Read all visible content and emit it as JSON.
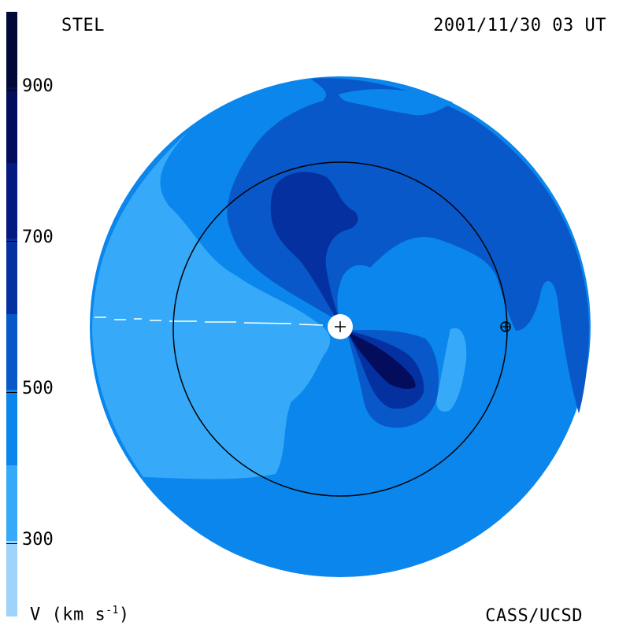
{
  "header": {
    "observatory": "STEL",
    "timestamp": "2001/11/30 03 UT"
  },
  "footer": {
    "credit": "CASS/UCSD",
    "units_text": "V (km s",
    "units_exp": "-1",
    "units_close": ")"
  },
  "colorbar": {
    "quantity": "V",
    "units": "km s-1",
    "range": [
      200,
      1000
    ],
    "ticks": [
      {
        "value": 900,
        "label": "900"
      },
      {
        "value": 700,
        "label": "700"
      },
      {
        "value": 500,
        "label": "500"
      },
      {
        "value": 300,
        "label": "300"
      }
    ],
    "bands": [
      {
        "from": 200,
        "to": 300,
        "color": "#9ed4fb"
      },
      {
        "from": 300,
        "to": 400,
        "color": "#36aaf9"
      },
      {
        "from": 400,
        "to": 500,
        "color": "#0a86ec"
      },
      {
        "from": 500,
        "to": 600,
        "color": "#0858c9"
      },
      {
        "from": 600,
        "to": 700,
        "color": "#0530a0"
      },
      {
        "from": 700,
        "to": 800,
        "color": "#041a80"
      },
      {
        "from": 800,
        "to": 900,
        "color": "#030d5c"
      },
      {
        "from": 900,
        "to": 1000,
        "color": "#020838"
      }
    ]
  },
  "map": {
    "view": "ecliptic-plane solar wind velocity",
    "markers": [
      {
        "name": "sun",
        "symbol": "+"
      },
      {
        "name": "earth",
        "symbol": "⊕"
      }
    ]
  }
}
